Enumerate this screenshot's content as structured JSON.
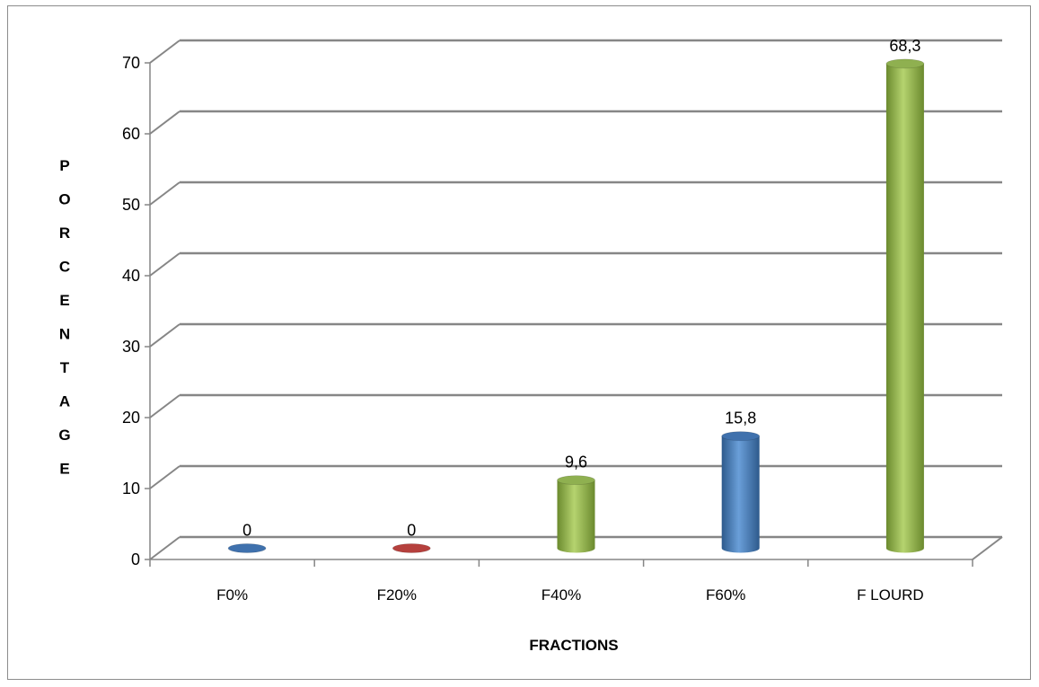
{
  "chart_data": {
    "type": "bar",
    "title": "",
    "xlabel": "FRACTIONS",
    "ylabel": "PORCENTAGE",
    "categories": [
      "F0%",
      "F20%",
      "F40%",
      "F60%",
      "F LOURD"
    ],
    "values": [
      0,
      0,
      9.6,
      15.8,
      68.3
    ],
    "data_labels": [
      "0",
      "0",
      "9,6",
      "15,8",
      "68,3"
    ],
    "bar_colors": [
      "#4f81bd",
      "#c0504d",
      "#9bbb59",
      "#4f81bd",
      "#9bbb59"
    ],
    "ylim": [
      0,
      70
    ],
    "yticks": [
      0,
      10,
      20,
      30,
      40,
      50,
      60,
      70
    ],
    "grid": true,
    "legend": "none",
    "style": "3d-cylinder"
  }
}
